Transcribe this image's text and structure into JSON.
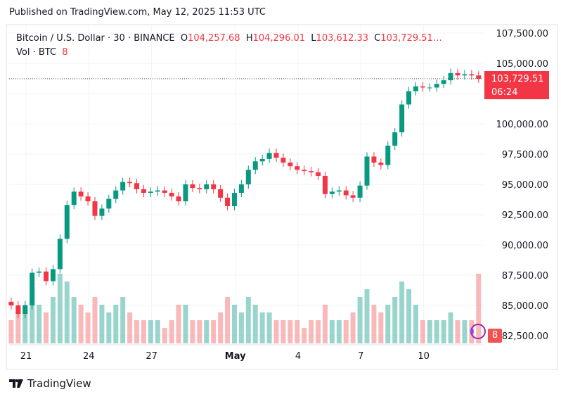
{
  "published": "Published on TradingView.com, May 12, 2025 11:53 UTC",
  "legend": {
    "symbol": "Bitcoin / U.S. Dollar · 30 · BINANCE",
    "o_label": "O",
    "o": "104,257.68",
    "h_label": "H",
    "h": "104,296.01",
    "l_label": "L",
    "l": "103,612.33",
    "c_label": "C",
    "c": "103,729.51…",
    "vol_label": "Vol · BTC",
    "vol": "8"
  },
  "price_tag": {
    "price": "103,729.51",
    "countdown": "06:24"
  },
  "volume_tag": "8",
  "footer": {
    "brand": "TradingView"
  },
  "colors": {
    "up": "#089981",
    "down": "#f23645",
    "up_vol": "#7fcbbf",
    "down_vol": "#f7a7a9"
  },
  "chart_data": {
    "type": "candlestick",
    "title": "Bitcoin / U.S. Dollar · 30 · BINANCE",
    "ylim": [
      81500,
      108500
    ],
    "yticks": [
      107500,
      105000,
      102500,
      100000,
      97500,
      95000,
      92500,
      90000,
      87500,
      85000,
      82500
    ],
    "ytick_labels": [
      "107,500.00",
      "105,000.00",
      "",
      "100,000.00",
      "97,500.00",
      "95,000.00",
      "92,500.00",
      "90,000.00",
      "87,500.00",
      "85,000.00",
      "82,500.00"
    ],
    "xticks": [
      {
        "label": "21",
        "date": "2025-04-21"
      },
      {
        "label": "24",
        "date": "2025-04-24"
      },
      {
        "label": "27",
        "date": "2025-04-27"
      },
      {
        "label": "May",
        "date": "2025-05-01"
      },
      {
        "label": "4",
        "date": "2025-05-04"
      },
      {
        "label": "7",
        "date": "2025-05-07"
      },
      {
        "label": "10",
        "date": "2025-05-10"
      }
    ],
    "grid": true,
    "start": "2025-04-20T07:00:00Z",
    "interval_hours": 8,
    "close": [
      85000,
      84300,
      85000,
      87700,
      87800,
      87000,
      88000,
      90500,
      93300,
      94400,
      94000,
      93600,
      92400,
      93000,
      93800,
      94500,
      95200,
      95100,
      94600,
      94300,
      94400,
      94500,
      94300,
      94000,
      93600,
      95000,
      94700,
      94600,
      95000,
      94600,
      93900,
      93200,
      94300,
      95000,
      96200,
      96900,
      97100,
      97600,
      97200,
      96800,
      96500,
      96200,
      96100,
      96000,
      95700,
      94200,
      94400,
      94500,
      94100,
      93900,
      94900,
      97300,
      96800,
      96600,
      98200,
      99300,
      101600,
      102700,
      103100,
      103000,
      103000,
      103300,
      103600,
      104200,
      104000,
      104100,
      104000,
      103730
    ],
    "volume_relative": [
      0.3,
      0.4,
      0.5,
      0.7,
      0.5,
      0.4,
      0.6,
      0.9,
      0.8,
      0.6,
      0.5,
      0.4,
      0.6,
      0.5,
      0.4,
      0.5,
      0.6,
      0.4,
      0.3,
      0.3,
      0.3,
      0.3,
      0.2,
      0.3,
      0.5,
      0.5,
      0.3,
      0.3,
      0.3,
      0.3,
      0.4,
      0.6,
      0.5,
      0.4,
      0.6,
      0.5,
      0.4,
      0.4,
      0.3,
      0.3,
      0.3,
      0.3,
      0.2,
      0.3,
      0.3,
      0.5,
      0.3,
      0.3,
      0.3,
      0.4,
      0.6,
      0.7,
      0.5,
      0.4,
      0.5,
      0.6,
      0.8,
      0.7,
      0.5,
      0.3,
      0.3,
      0.3,
      0.3,
      0.4,
      0.3,
      0.3,
      0.3,
      0.9
    ],
    "last_price": 103729.51
  }
}
